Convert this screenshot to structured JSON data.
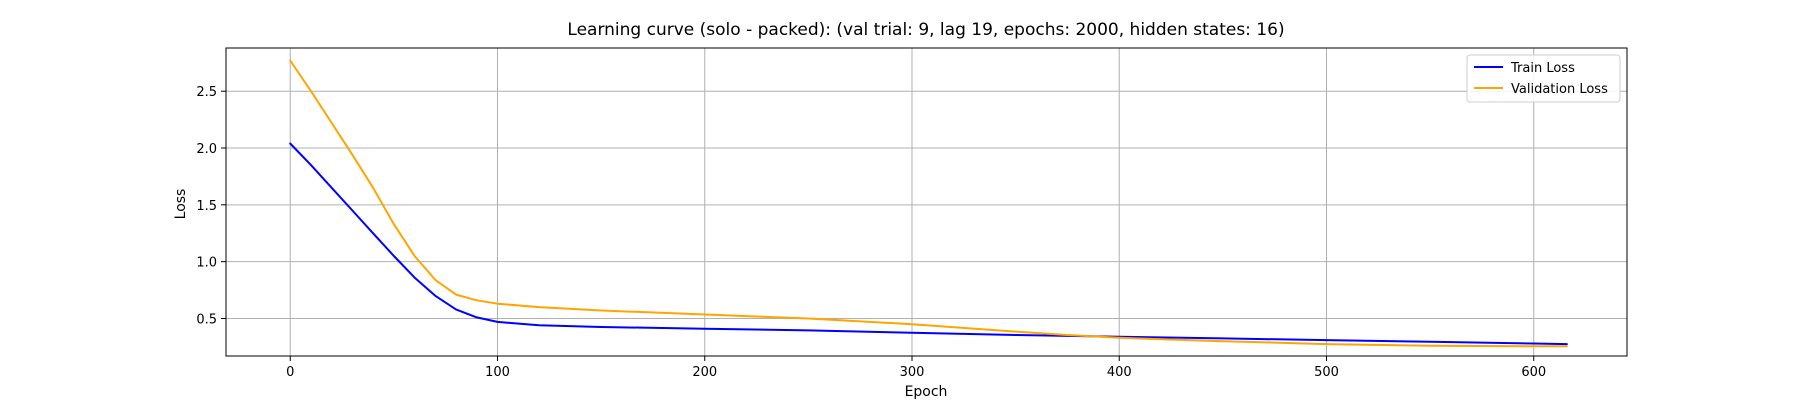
{
  "chart_data": {
    "type": "line",
    "title": "Learning curve (solo - packed): (val trial: 9, lag 19, epochs: 2000, hidden states: 16)",
    "xlabel": "Epoch",
    "ylabel": "Loss",
    "xlim": [
      -31,
      645
    ],
    "ylim": [
      0.17,
      2.88
    ],
    "xticks": [
      0,
      100,
      200,
      300,
      400,
      500,
      600
    ],
    "yticks": [
      0.5,
      1.0,
      1.5,
      2.0,
      2.5
    ],
    "ytick_labels": [
      "0.5",
      "1.0",
      "1.5",
      "2.0",
      "2.5"
    ],
    "grid": true,
    "legend_position": "top-right",
    "series": [
      {
        "name": "Train Loss",
        "color": "#0000ff",
        "x": [
          0,
          10,
          20,
          30,
          40,
          50,
          60,
          70,
          80,
          90,
          100,
          120,
          150,
          200,
          250,
          300,
          350,
          400,
          450,
          500,
          550,
          600,
          616
        ],
        "y": [
          2.04,
          1.85,
          1.65,
          1.45,
          1.25,
          1.05,
          0.86,
          0.7,
          0.58,
          0.51,
          0.47,
          0.44,
          0.425,
          0.41,
          0.395,
          0.375,
          0.355,
          0.34,
          0.325,
          0.31,
          0.295,
          0.28,
          0.275
        ]
      },
      {
        "name": "Validation Loss",
        "color": "#ffa500",
        "x": [
          0,
          10,
          20,
          30,
          40,
          50,
          60,
          70,
          80,
          90,
          100,
          120,
          150,
          200,
          250,
          300,
          350,
          375,
          400,
          450,
          500,
          550,
          600,
          616
        ],
        "y": [
          2.77,
          2.5,
          2.22,
          1.94,
          1.65,
          1.33,
          1.05,
          0.84,
          0.71,
          0.66,
          0.63,
          0.6,
          0.57,
          0.535,
          0.5,
          0.45,
          0.385,
          0.355,
          0.33,
          0.3,
          0.275,
          0.26,
          0.255,
          0.255
        ]
      }
    ]
  }
}
